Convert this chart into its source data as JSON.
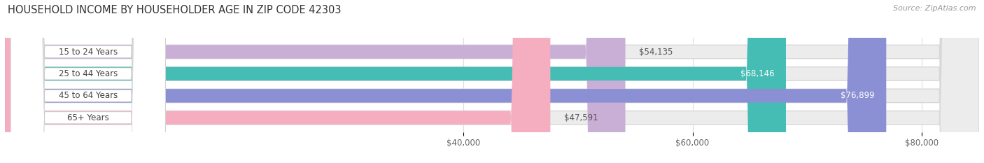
{
  "title": "HOUSEHOLD INCOME BY HOUSEHOLDER AGE IN ZIP CODE 42303",
  "source": "Source: ZipAtlas.com",
  "categories": [
    "15 to 24 Years",
    "25 to 44 Years",
    "45 to 64 Years",
    "65+ Years"
  ],
  "values": [
    54135,
    68146,
    76899,
    47591
  ],
  "bar_colors": [
    "#c9afd6",
    "#45bdb5",
    "#8b8fd4",
    "#f5adc0"
  ],
  "bar_bg_color": "#ececec",
  "xmin": 0,
  "xmax": 85000,
  "xticks": [
    40000,
    60000,
    80000
  ],
  "xtick_labels": [
    "$40,000",
    "$60,000",
    "$80,000"
  ],
  "background_color": "#ffffff",
  "bar_height": 0.62,
  "title_fontsize": 10.5,
  "source_fontsize": 8,
  "label_fontsize": 8.5,
  "tick_fontsize": 8.5,
  "value_label_colors_inside": [
    "#555555",
    "#ffffff",
    "#ffffff",
    "#555555"
  ],
  "grid_color": "#dddddd"
}
